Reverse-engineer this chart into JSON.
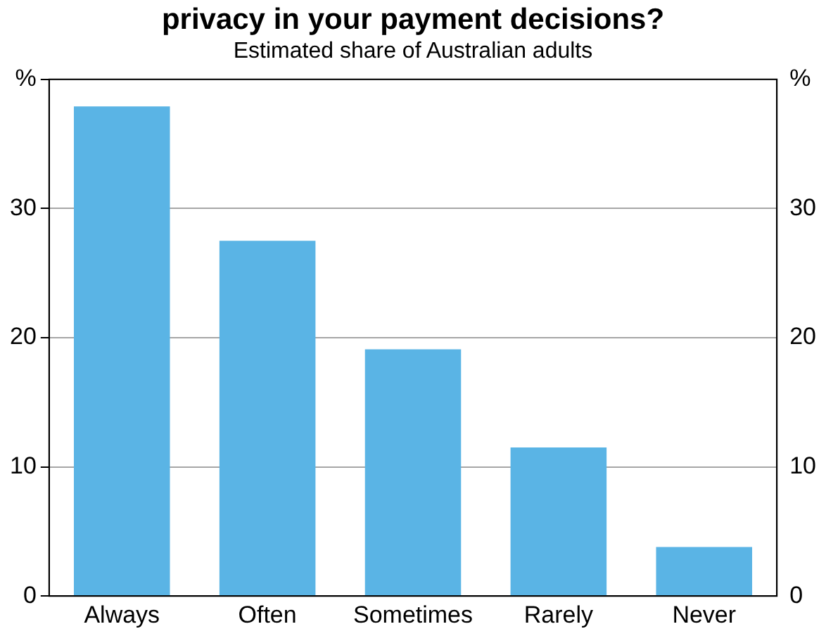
{
  "chart_data": {
    "type": "bar",
    "title": "privacy in your payment decisions?",
    "subtitle": "Estimated share of Australian adults",
    "categories": [
      "Always",
      "Often",
      "Sometimes",
      "Rarely",
      "Never"
    ],
    "values": [
      37.9,
      27.5,
      19.1,
      11.5,
      3.8
    ],
    "color": "#5ab4e5",
    "ylim": [
      0,
      40
    ],
    "yticks": [
      0,
      10,
      20,
      30,
      {
        "value": 40,
        "label": "%"
      }
    ],
    "y2lim": [
      0,
      40
    ],
    "y2ticks": [
      0,
      10,
      20,
      30,
      {
        "value": 40,
        "label": "%"
      }
    ],
    "grid": "y",
    "legend": false
  }
}
